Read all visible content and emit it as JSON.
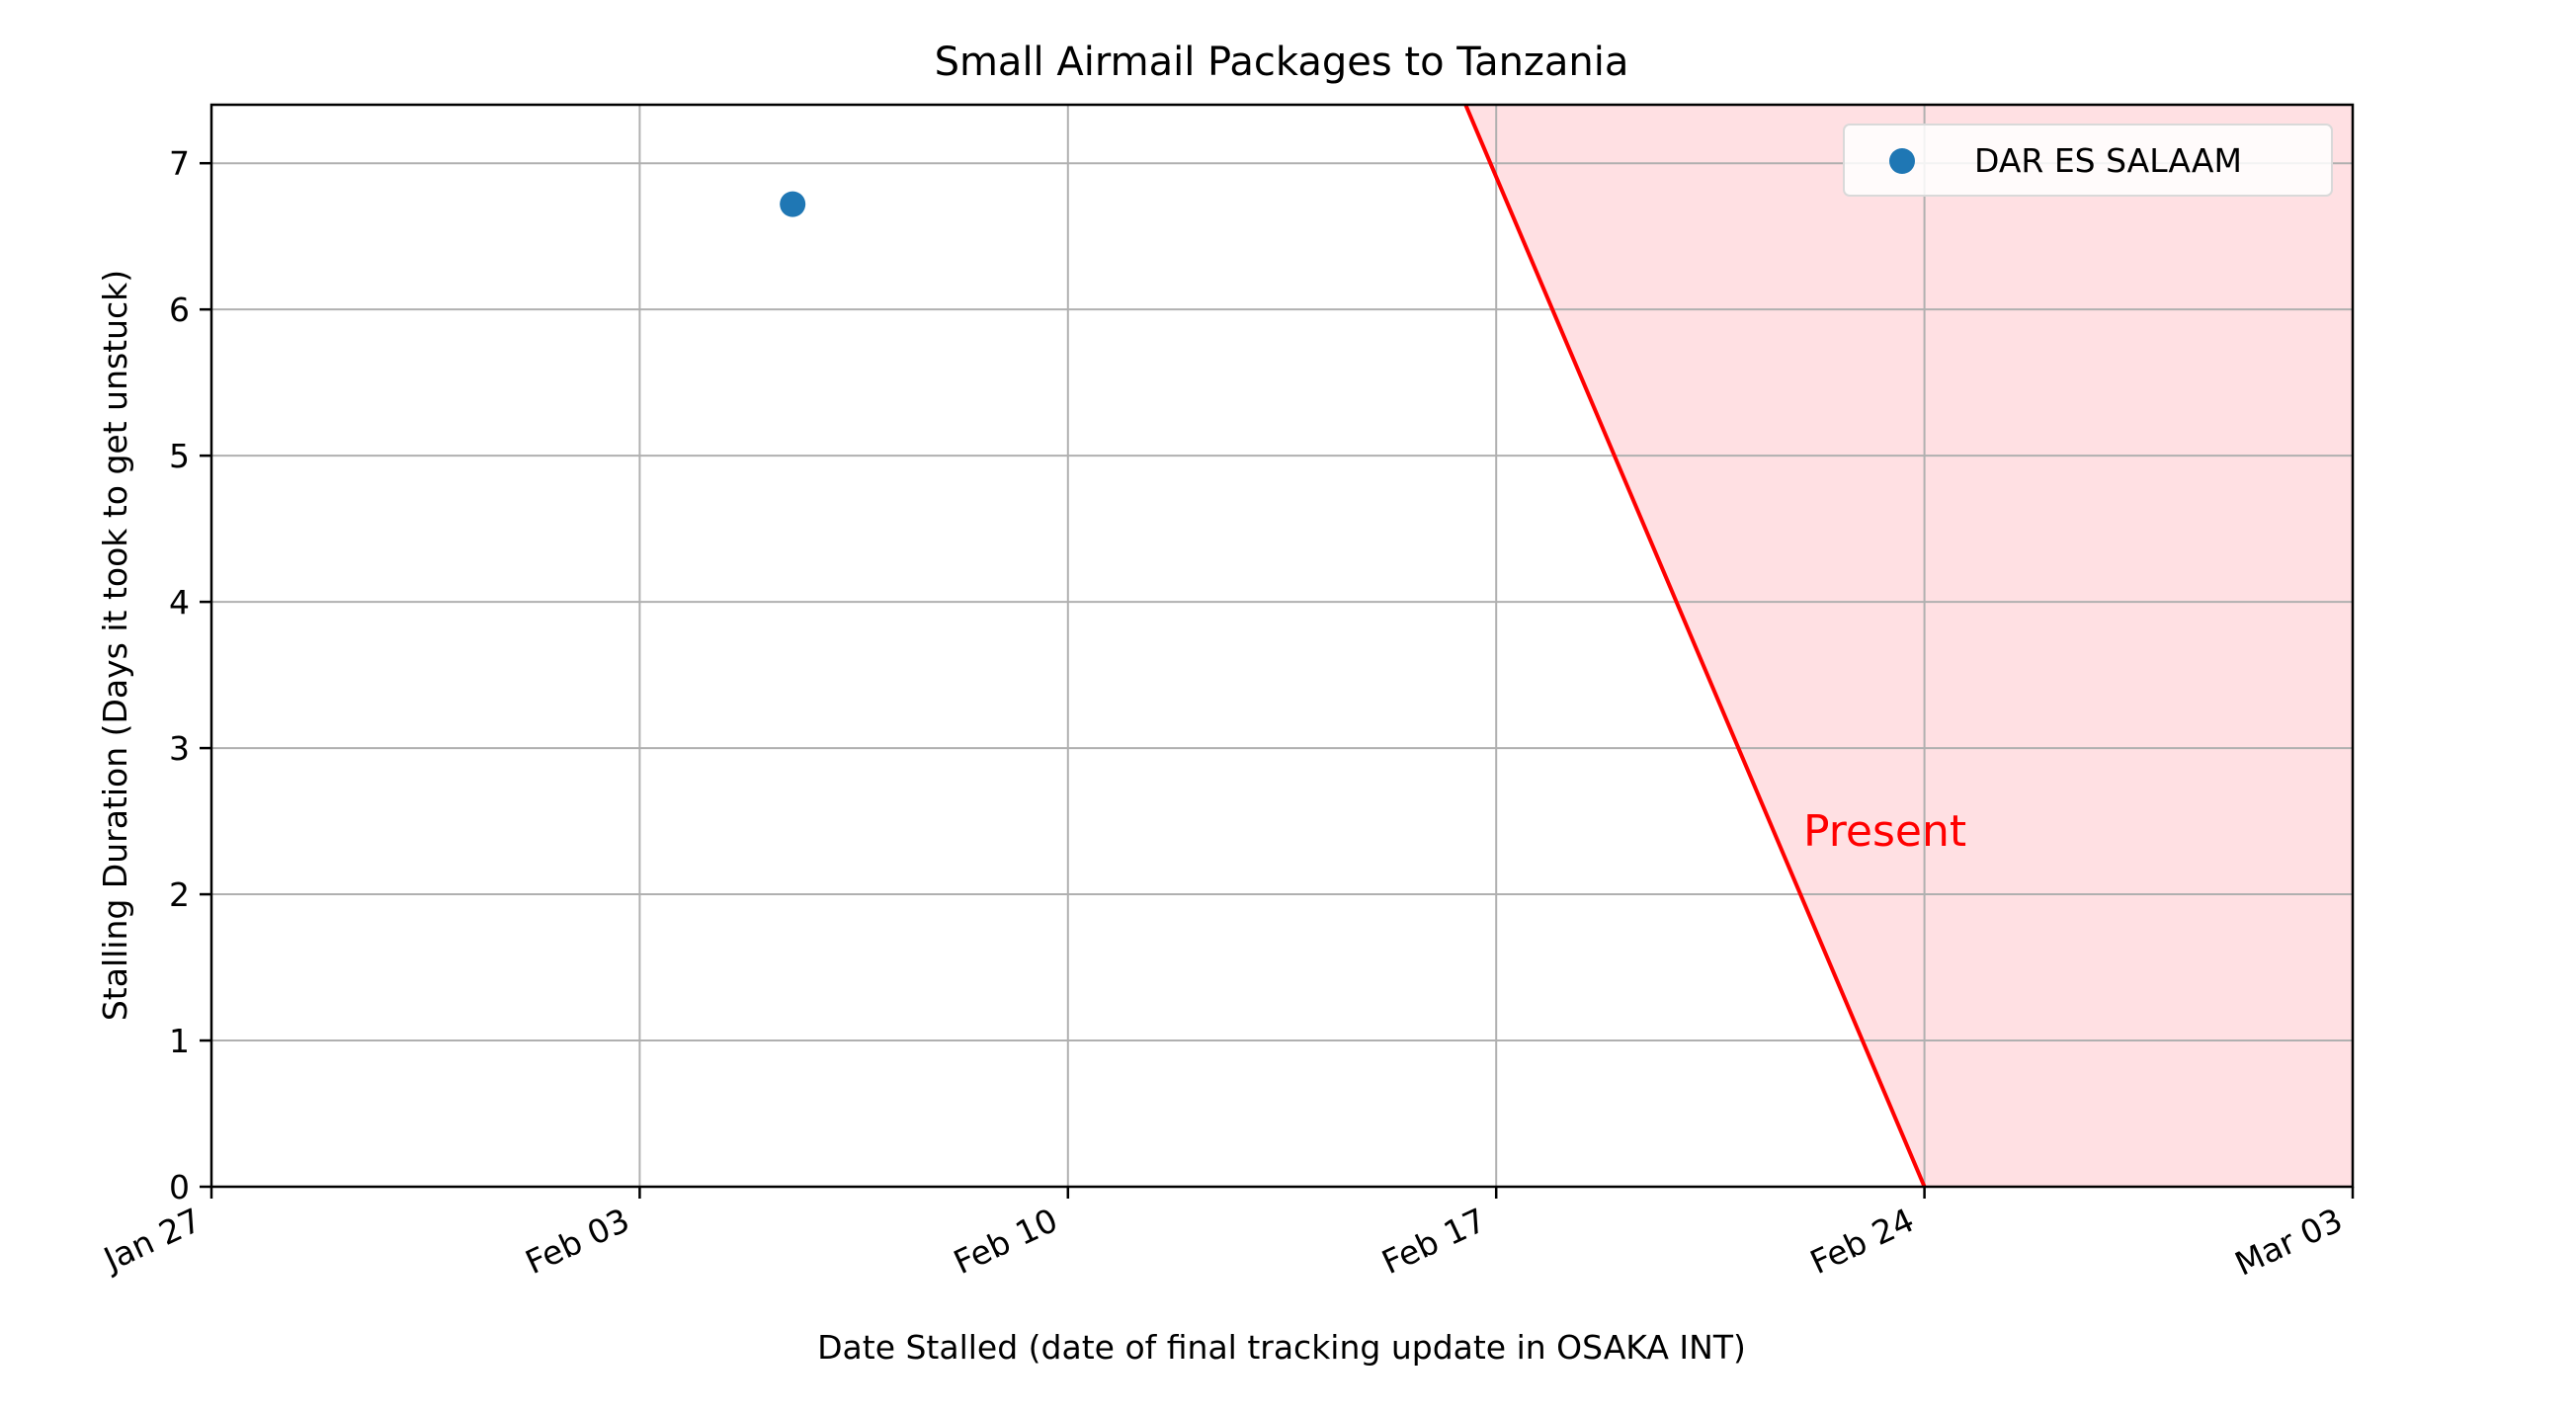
{
  "chart_data": {
    "type": "scatter",
    "title": "Small Airmail Packages to Tanzania",
    "xlabel": "Date Stalled (date of final tracking update in OSAKA INT)",
    "ylabel": "Stalling Duration (Days it took to get unstuck)",
    "x_axis_type": "date",
    "xlim": [
      "2025-01-27",
      "2025-03-03"
    ],
    "ylim": [
      0,
      7.4
    ],
    "x_ticks": [
      {
        "date": "2025-01-27",
        "label": "Jan 27"
      },
      {
        "date": "2025-02-03",
        "label": "Feb 03"
      },
      {
        "date": "2025-02-10",
        "label": "Feb 10"
      },
      {
        "date": "2025-02-17",
        "label": "Feb 17"
      },
      {
        "date": "2025-02-24",
        "label": "Feb 24"
      },
      {
        "date": "2025-03-03",
        "label": "Mar 03"
      }
    ],
    "y_ticks": [
      0,
      1,
      2,
      3,
      4,
      5,
      6,
      7
    ],
    "grid": true,
    "legend_position": "upper right",
    "series": [
      {
        "name": "DAR ES SALAAM",
        "color": "#1f77b4",
        "points": [
          {
            "x": "2025-02-05T12:00",
            "y": 6.72
          }
        ]
      }
    ],
    "present_line": {
      "label": "Present",
      "color": "#ff0000",
      "shade_color": "#ffe0e3",
      "from": {
        "x": "2025-02-24",
        "y": 0
      },
      "to": {
        "x": "2025-02-16T12:00",
        "y": 7.4
      }
    }
  }
}
